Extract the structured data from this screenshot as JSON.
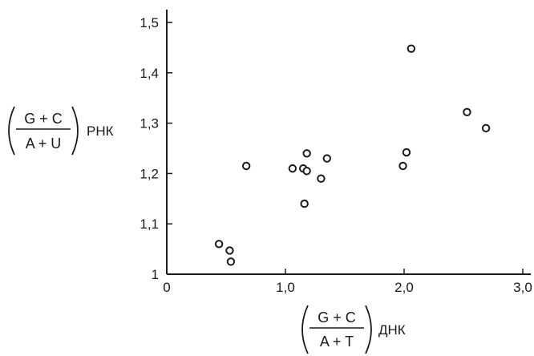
{
  "chart_data": {
    "type": "scatter",
    "xlim": [
      0,
      3.0
    ],
    "ylim": [
      1.0,
      1.5
    ],
    "x_ticks": [
      {
        "value": 0,
        "label": "0"
      },
      {
        "value": 1.0,
        "label": "1,0"
      },
      {
        "value": 2.0,
        "label": "2,0"
      },
      {
        "value": 3.0,
        "label": "3,0"
      }
    ],
    "y_ticks": [
      {
        "value": 1.0,
        "label": "1"
      },
      {
        "value": 1.1,
        "label": "1,1"
      },
      {
        "value": 1.2,
        "label": "1,2"
      },
      {
        "value": 1.3,
        "label": "1,3"
      },
      {
        "value": 1.4,
        "label": "1,4"
      },
      {
        "value": 1.5,
        "label": "1,5"
      }
    ],
    "xlabel": {
      "numerator": "G + C",
      "denominator": "A + T",
      "suffix": "ДНК"
    },
    "ylabel": {
      "numerator": "G + C",
      "denominator": "A + U",
      "suffix": "РНК"
    },
    "grid": false,
    "marker": "open-circle",
    "points": [
      {
        "x": 0.44,
        "y": 1.06
      },
      {
        "x": 0.53,
        "y": 1.047
      },
      {
        "x": 0.54,
        "y": 1.025
      },
      {
        "x": 0.67,
        "y": 1.215
      },
      {
        "x": 1.06,
        "y": 1.21
      },
      {
        "x": 1.15,
        "y": 1.21
      },
      {
        "x": 1.16,
        "y": 1.14
      },
      {
        "x": 1.18,
        "y": 1.205
      },
      {
        "x": 1.18,
        "y": 1.24
      },
      {
        "x": 1.3,
        "y": 1.19
      },
      {
        "x": 1.35,
        "y": 1.23
      },
      {
        "x": 1.99,
        "y": 1.215
      },
      {
        "x": 2.02,
        "y": 1.242
      },
      {
        "x": 2.06,
        "y": 1.448
      },
      {
        "x": 2.53,
        "y": 1.322
      },
      {
        "x": 2.69,
        "y": 1.29
      }
    ]
  }
}
